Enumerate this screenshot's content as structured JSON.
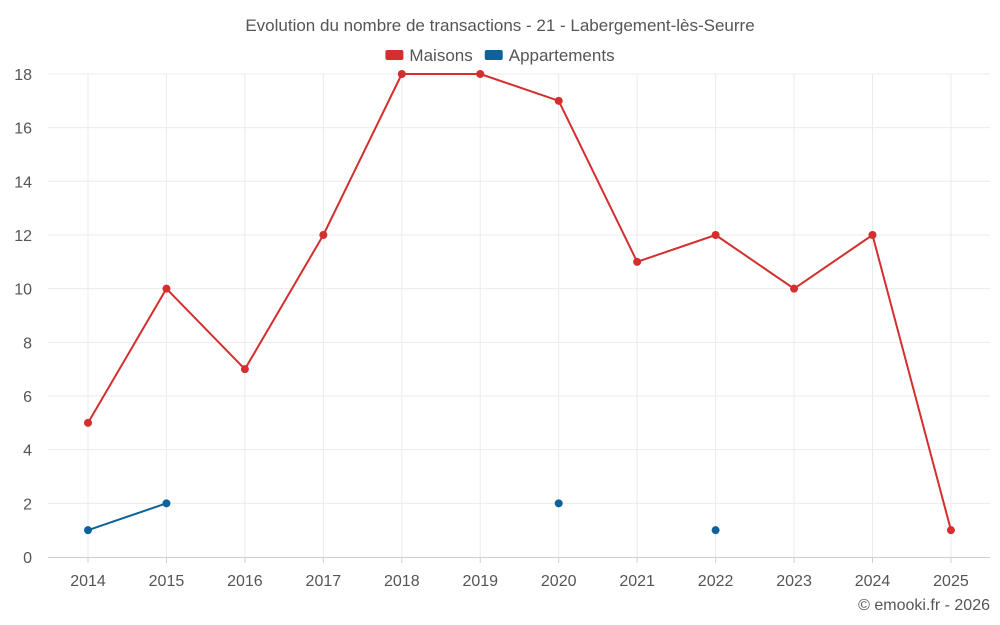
{
  "chart_data": {
    "type": "line",
    "title": "Evolution du nombre de transactions - 21 - Labergement-lès-Seurre",
    "categories": [
      "2014",
      "2015",
      "2016",
      "2017",
      "2018",
      "2019",
      "2020",
      "2021",
      "2022",
      "2023",
      "2024",
      "2025"
    ],
    "ylim": [
      0,
      18
    ],
    "yticks": [
      0,
      2,
      4,
      6,
      8,
      10,
      12,
      14,
      16,
      18
    ],
    "grid": true,
    "legend_position": "top-center",
    "series": [
      {
        "name": "Maisons",
        "color": "#d32f2f",
        "values": [
          5,
          10,
          7,
          12,
          18,
          18,
          17,
          11,
          12,
          10,
          12,
          1
        ]
      },
      {
        "name": "Appartements",
        "color": "#0d629b",
        "values": [
          1,
          2,
          null,
          null,
          null,
          null,
          2,
          null,
          1,
          null,
          null,
          null
        ]
      }
    ],
    "credit": "© emooki.fr - 2026"
  }
}
